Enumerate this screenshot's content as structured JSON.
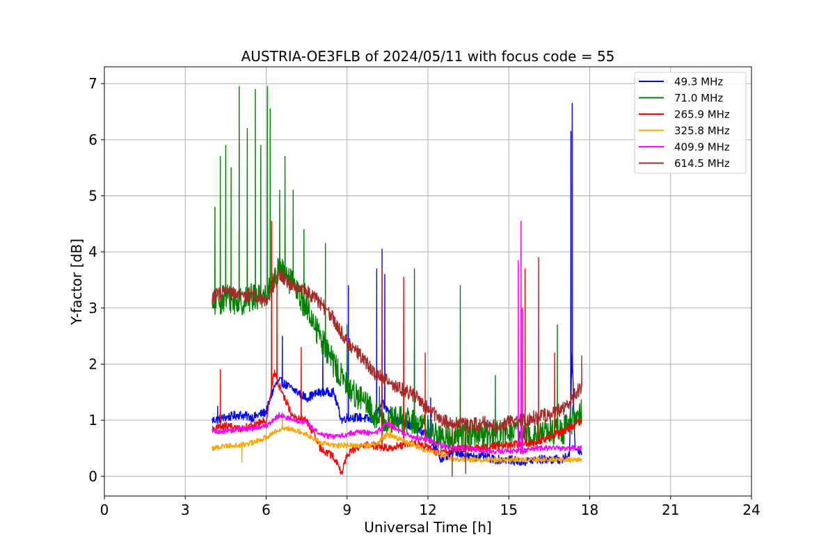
{
  "chart_data": {
    "type": "line",
    "title": "AUSTRIA-OE3FLB of 2024/05/11 with focus code = 55",
    "xlabel": "Universal Time [h]",
    "ylabel": "Y-factor [dB]",
    "xlim": [
      0,
      24
    ],
    "ylim": [
      -0.35,
      7.3
    ],
    "xticks": [
      0,
      3,
      6,
      9,
      12,
      15,
      18,
      21,
      24
    ],
    "yticks": [
      0,
      1,
      2,
      3,
      4,
      5,
      6,
      7
    ],
    "grid": true,
    "legend_position": "top-right",
    "series": [
      {
        "name": " 49.3 MHz",
        "color": "#0000ff",
        "noise": 0.08,
        "points": [
          [
            4.0,
            1.0
          ],
          [
            4.5,
            1.05
          ],
          [
            5.0,
            1.1
          ],
          [
            5.5,
            1.05
          ],
          [
            6.0,
            1.15
          ],
          [
            6.3,
            1.6
          ],
          [
            6.5,
            1.7
          ],
          [
            7.0,
            1.55
          ],
          [
            7.5,
            1.4
          ],
          [
            8.0,
            1.5
          ],
          [
            8.5,
            1.5
          ],
          [
            8.8,
            1.0
          ],
          [
            9.0,
            1.05
          ],
          [
            9.5,
            1.05
          ],
          [
            10.0,
            1.0
          ],
          [
            10.3,
            1.3
          ],
          [
            10.8,
            1.0
          ],
          [
            11.0,
            1.0
          ],
          [
            11.5,
            0.85
          ],
          [
            12.0,
            0.75
          ],
          [
            12.5,
            0.3
          ],
          [
            13.0,
            0.45
          ],
          [
            13.5,
            0.35
          ],
          [
            14.0,
            0.35
          ],
          [
            14.5,
            0.3
          ],
          [
            15.0,
            0.3
          ],
          [
            15.5,
            0.25
          ],
          [
            16.0,
            0.3
          ],
          [
            16.5,
            0.3
          ],
          [
            17.0,
            0.3
          ],
          [
            17.25,
            0.4
          ],
          [
            17.35,
            2.2
          ],
          [
            17.45,
            0.5
          ],
          [
            17.7,
            0.45
          ]
        ],
        "spikes": [
          [
            4.2,
            1.25
          ],
          [
            6.6,
            2.5
          ],
          [
            8.1,
            2.4
          ],
          [
            9.05,
            3.4
          ],
          [
            10.1,
            3.7
          ],
          [
            10.3,
            4.05
          ],
          [
            10.4,
            3.6
          ],
          [
            11.5,
            2.2
          ],
          [
            12.1,
            1.4
          ],
          [
            14.2,
            1.0
          ],
          [
            17.3,
            6.15
          ],
          [
            17.35,
            6.65
          ]
        ]
      },
      {
        "name": " 71.0 MHz",
        "color": "#008000",
        "noise": 0.25,
        "points": [
          [
            4.0,
            3.0
          ],
          [
            4.5,
            3.2
          ],
          [
            5.0,
            3.1
          ],
          [
            5.5,
            3.2
          ],
          [
            6.0,
            3.25
          ],
          [
            6.5,
            3.7
          ],
          [
            7.0,
            3.4
          ],
          [
            7.5,
            3.0
          ],
          [
            8.0,
            2.5
          ],
          [
            8.5,
            2.0
          ],
          [
            9.0,
            1.6
          ],
          [
            9.5,
            1.4
          ],
          [
            10.0,
            1.1
          ],
          [
            10.5,
            1.0
          ],
          [
            11.0,
            1.0
          ],
          [
            11.5,
            0.95
          ],
          [
            12.0,
            0.85
          ],
          [
            12.5,
            0.7
          ],
          [
            13.0,
            0.7
          ],
          [
            13.5,
            0.75
          ],
          [
            14.0,
            0.7
          ],
          [
            14.5,
            0.75
          ],
          [
            15.0,
            0.75
          ],
          [
            15.5,
            0.75
          ],
          [
            16.0,
            0.8
          ],
          [
            16.5,
            0.8
          ],
          [
            17.0,
            0.8
          ],
          [
            17.7,
            1.2
          ]
        ],
        "spikes": [
          [
            4.1,
            4.8
          ],
          [
            4.3,
            5.7
          ],
          [
            4.5,
            5.9
          ],
          [
            4.7,
            5.5
          ],
          [
            5.0,
            6.95
          ],
          [
            5.3,
            6.2
          ],
          [
            5.6,
            6.9
          ],
          [
            5.8,
            5.9
          ],
          [
            6.05,
            6.95
          ],
          [
            6.15,
            6.55
          ],
          [
            6.5,
            5.1
          ],
          [
            6.7,
            5.7
          ],
          [
            7.0,
            5.1
          ],
          [
            7.4,
            4.4
          ],
          [
            8.2,
            4.15
          ],
          [
            9.0,
            2.7
          ],
          [
            10.2,
            1.6
          ],
          [
            11.5,
            3.7
          ],
          [
            13.2,
            3.4
          ],
          [
            14.5,
            1.8
          ],
          [
            16.8,
            2.7
          ]
        ]
      },
      {
        "name": " 265.9 MHz",
        "color": "#ff0000",
        "noise": 0.07,
        "points": [
          [
            4.0,
            0.85
          ],
          [
            4.5,
            0.9
          ],
          [
            5.0,
            0.85
          ],
          [
            5.5,
            0.9
          ],
          [
            6.0,
            1.0
          ],
          [
            6.3,
            1.85
          ],
          [
            6.5,
            1.6
          ],
          [
            7.0,
            1.05
          ],
          [
            7.5,
            1.0
          ],
          [
            8.0,
            0.5
          ],
          [
            8.5,
            0.35
          ],
          [
            8.8,
            0.05
          ],
          [
            9.0,
            0.4
          ],
          [
            9.5,
            0.55
          ],
          [
            10.0,
            0.55
          ],
          [
            10.5,
            0.5
          ],
          [
            11.0,
            0.55
          ],
          [
            11.5,
            0.6
          ],
          [
            12.0,
            0.5
          ],
          [
            12.5,
            0.4
          ],
          [
            13.0,
            0.5
          ],
          [
            13.5,
            0.5
          ],
          [
            14.0,
            0.5
          ],
          [
            14.5,
            0.55
          ],
          [
            15.0,
            0.55
          ],
          [
            15.5,
            0.6
          ],
          [
            16.0,
            0.6
          ],
          [
            16.5,
            0.7
          ],
          [
            17.0,
            0.8
          ],
          [
            17.7,
            1.0
          ]
        ],
        "spikes": [
          [
            4.3,
            1.9
          ],
          [
            6.2,
            4.55
          ],
          [
            6.4,
            3.5
          ],
          [
            7.3,
            2.3
          ],
          [
            10.3,
            3.7
          ],
          [
            11.1,
            3.55
          ],
          [
            11.9,
            2.2
          ],
          [
            15.6,
            3.7
          ],
          [
            16.1,
            3.9
          ],
          [
            16.7,
            2.2
          ]
        ]
      },
      {
        "name": " 325.8 MHz",
        "color": "#ffa500",
        "noise": 0.05,
        "points": [
          [
            4.0,
            0.5
          ],
          [
            4.5,
            0.55
          ],
          [
            5.0,
            0.55
          ],
          [
            5.5,
            0.6
          ],
          [
            6.0,
            0.7
          ],
          [
            6.5,
            0.85
          ],
          [
            7.0,
            0.85
          ],
          [
            7.5,
            0.75
          ],
          [
            8.0,
            0.6
          ],
          [
            8.5,
            0.55
          ],
          [
            9.0,
            0.55
          ],
          [
            9.5,
            0.55
          ],
          [
            10.0,
            0.55
          ],
          [
            10.5,
            0.75
          ],
          [
            11.0,
            0.65
          ],
          [
            11.5,
            0.55
          ],
          [
            12.0,
            0.45
          ],
          [
            12.5,
            0.4
          ],
          [
            13.0,
            0.3
          ],
          [
            13.5,
            0.3
          ],
          [
            14.0,
            0.3
          ],
          [
            14.5,
            0.3
          ],
          [
            15.0,
            0.3
          ],
          [
            15.5,
            0.3
          ],
          [
            16.0,
            0.3
          ],
          [
            16.5,
            0.3
          ],
          [
            17.0,
            0.3
          ],
          [
            17.7,
            0.3
          ]
        ],
        "spikes": [
          [
            5.1,
            0.25
          ],
          [
            6.6,
            1.15
          ],
          [
            10.6,
            1.0
          ]
        ]
      },
      {
        "name": " 409.9 MHz",
        "color": "#ff00ff",
        "noise": 0.05,
        "points": [
          [
            4.0,
            0.8
          ],
          [
            4.5,
            0.8
          ],
          [
            5.0,
            0.85
          ],
          [
            5.5,
            0.85
          ],
          [
            6.0,
            0.9
          ],
          [
            6.5,
            1.1
          ],
          [
            7.0,
            1.0
          ],
          [
            7.5,
            0.95
          ],
          [
            8.0,
            0.75
          ],
          [
            8.5,
            0.7
          ],
          [
            9.0,
            0.75
          ],
          [
            9.5,
            0.8
          ],
          [
            10.0,
            0.75
          ],
          [
            10.5,
            0.95
          ],
          [
            11.0,
            0.8
          ],
          [
            11.5,
            0.7
          ],
          [
            12.0,
            0.65
          ],
          [
            12.5,
            0.55
          ],
          [
            13.0,
            0.5
          ],
          [
            13.5,
            0.5
          ],
          [
            14.0,
            0.45
          ],
          [
            14.5,
            0.45
          ],
          [
            15.0,
            0.45
          ],
          [
            15.5,
            0.45
          ],
          [
            16.0,
            0.5
          ],
          [
            16.5,
            0.5
          ],
          [
            17.0,
            0.5
          ],
          [
            17.7,
            0.5
          ]
        ],
        "spikes": [
          [
            15.35,
            3.85
          ],
          [
            15.45,
            4.55
          ],
          [
            15.5,
            3.0
          ]
        ]
      },
      {
        "name": " 614.5 MHz",
        "color": "#a52a2a",
        "noise": 0.13,
        "points": [
          [
            4.0,
            3.2
          ],
          [
            4.5,
            3.3
          ],
          [
            5.0,
            3.2
          ],
          [
            5.5,
            3.25
          ],
          [
            6.0,
            3.15
          ],
          [
            6.5,
            3.6
          ],
          [
            7.0,
            3.4
          ],
          [
            7.5,
            3.3
          ],
          [
            8.0,
            3.1
          ],
          [
            8.5,
            2.8
          ],
          [
            9.0,
            2.4
          ],
          [
            9.5,
            2.15
          ],
          [
            10.0,
            1.85
          ],
          [
            10.5,
            1.7
          ],
          [
            11.0,
            1.55
          ],
          [
            11.5,
            1.45
          ],
          [
            12.0,
            1.2
          ],
          [
            12.5,
            1.0
          ],
          [
            13.0,
            0.95
          ],
          [
            13.5,
            0.9
          ],
          [
            14.0,
            0.95
          ],
          [
            14.5,
            0.9
          ],
          [
            15.0,
            0.95
          ],
          [
            15.5,
            1.0
          ],
          [
            16.0,
            1.05
          ],
          [
            16.5,
            1.1
          ],
          [
            17.0,
            1.2
          ],
          [
            17.7,
            1.6
          ]
        ],
        "spikes": [
          [
            12.9,
            0.0
          ],
          [
            13.4,
            0.05
          ],
          [
            17.7,
            2.15
          ]
        ]
      }
    ]
  }
}
